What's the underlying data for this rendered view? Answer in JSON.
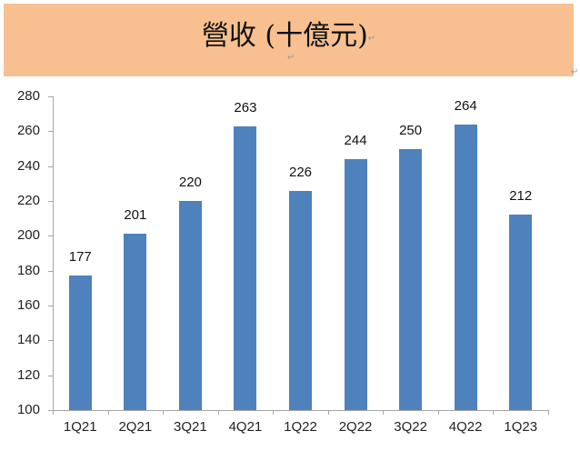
{
  "header": {
    "title": "營收 (十億元)",
    "para_mark": "↵",
    "bg_color": "#f8c090"
  },
  "chart_data": {
    "type": "bar",
    "title": "營收 (十億元)",
    "categories": [
      "1Q21",
      "2Q21",
      "3Q21",
      "4Q21",
      "1Q22",
      "2Q22",
      "3Q22",
      "4Q22",
      "1Q23"
    ],
    "values": [
      177,
      201,
      220,
      263,
      226,
      244,
      250,
      264,
      212
    ],
    "xlabel": "",
    "ylabel": "",
    "ylim": [
      100,
      280
    ],
    "yticks": [
      100,
      120,
      140,
      160,
      180,
      200,
      220,
      240,
      260,
      280
    ],
    "grid": false,
    "legend": null,
    "bar_color": "#4f81bd",
    "data_labels": true
  }
}
